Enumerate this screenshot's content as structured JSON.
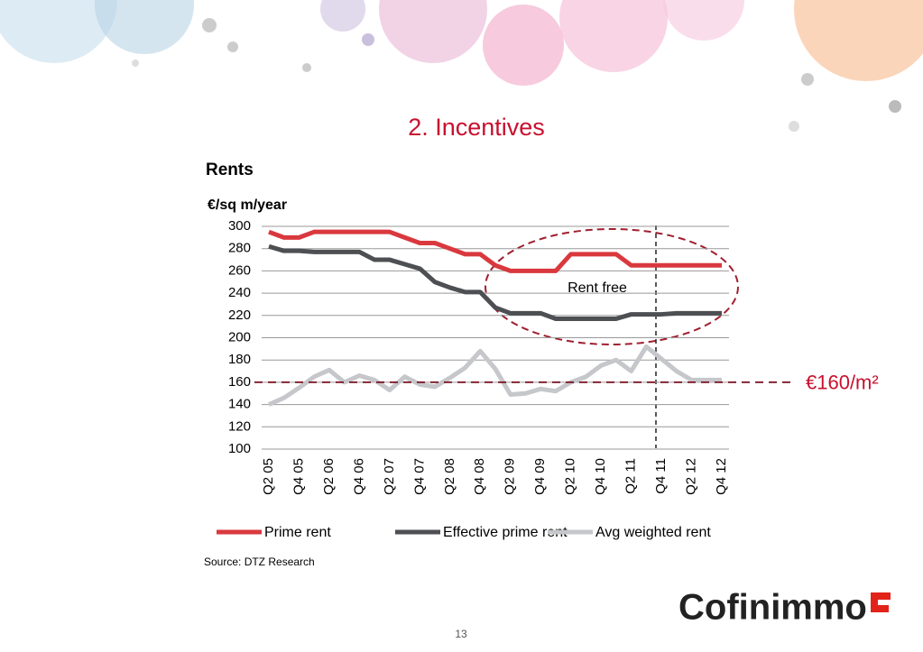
{
  "slide_title": "2. Incentives",
  "page_number": "13",
  "logo": "Cofinimmo",
  "chart_data": {
    "type": "line",
    "title": "Rents",
    "y_label": "€/sq m/year",
    "source": "Source: DTZ Research",
    "annotation": "Rent free",
    "reference_line": {
      "value": 160,
      "label": "€160/m²"
    },
    "categories": [
      "Q2 05",
      null,
      "Q4 05",
      null,
      "Q2 06",
      null,
      "Q4 06",
      null,
      "Q2 07",
      null,
      "Q4 07",
      null,
      "Q2 08",
      null,
      "Q4 08",
      null,
      "Q2 09",
      null,
      "Q4 09",
      null,
      "Q2 10",
      null,
      "Q4 10",
      null,
      "Q2 11",
      null,
      "Q4 11",
      null,
      "Q2 12",
      null,
      "Q4 12"
    ],
    "series": [
      {
        "name": "Prime rent",
        "color": "#d9393e",
        "values": [
          295,
          290,
          290,
          295,
          295,
          295,
          295,
          295,
          295,
          290,
          285,
          285,
          280,
          275,
          275,
          265,
          260,
          260,
          260,
          260,
          275,
          275,
          275,
          275,
          265,
          265,
          265,
          265,
          265,
          265,
          265
        ]
      },
      {
        "name": "Effective prime rent",
        "color": "#4d4f53",
        "values": [
          282,
          278,
          278,
          277,
          277,
          277,
          277,
          270,
          270,
          266,
          262,
          250,
          245,
          241,
          241,
          227,
          222,
          222,
          222,
          217,
          217,
          217,
          217,
          217,
          221,
          221,
          221,
          222,
          222,
          222,
          222
        ]
      },
      {
        "name": "Avg weighted rent",
        "color": "#c6c7cb",
        "values": [
          140,
          146,
          155,
          165,
          171,
          160,
          166,
          162,
          153,
          165,
          158,
          156,
          164,
          173,
          188,
          172,
          149,
          150,
          154,
          152,
          160,
          165,
          175,
          180,
          170,
          192,
          181,
          170,
          162,
          162,
          162
        ]
      }
    ],
    "ylim": [
      100,
      300
    ],
    "yticks": [
      100,
      120,
      140,
      160,
      180,
      200,
      220,
      240,
      260,
      280,
      300
    ],
    "grid": true
  }
}
